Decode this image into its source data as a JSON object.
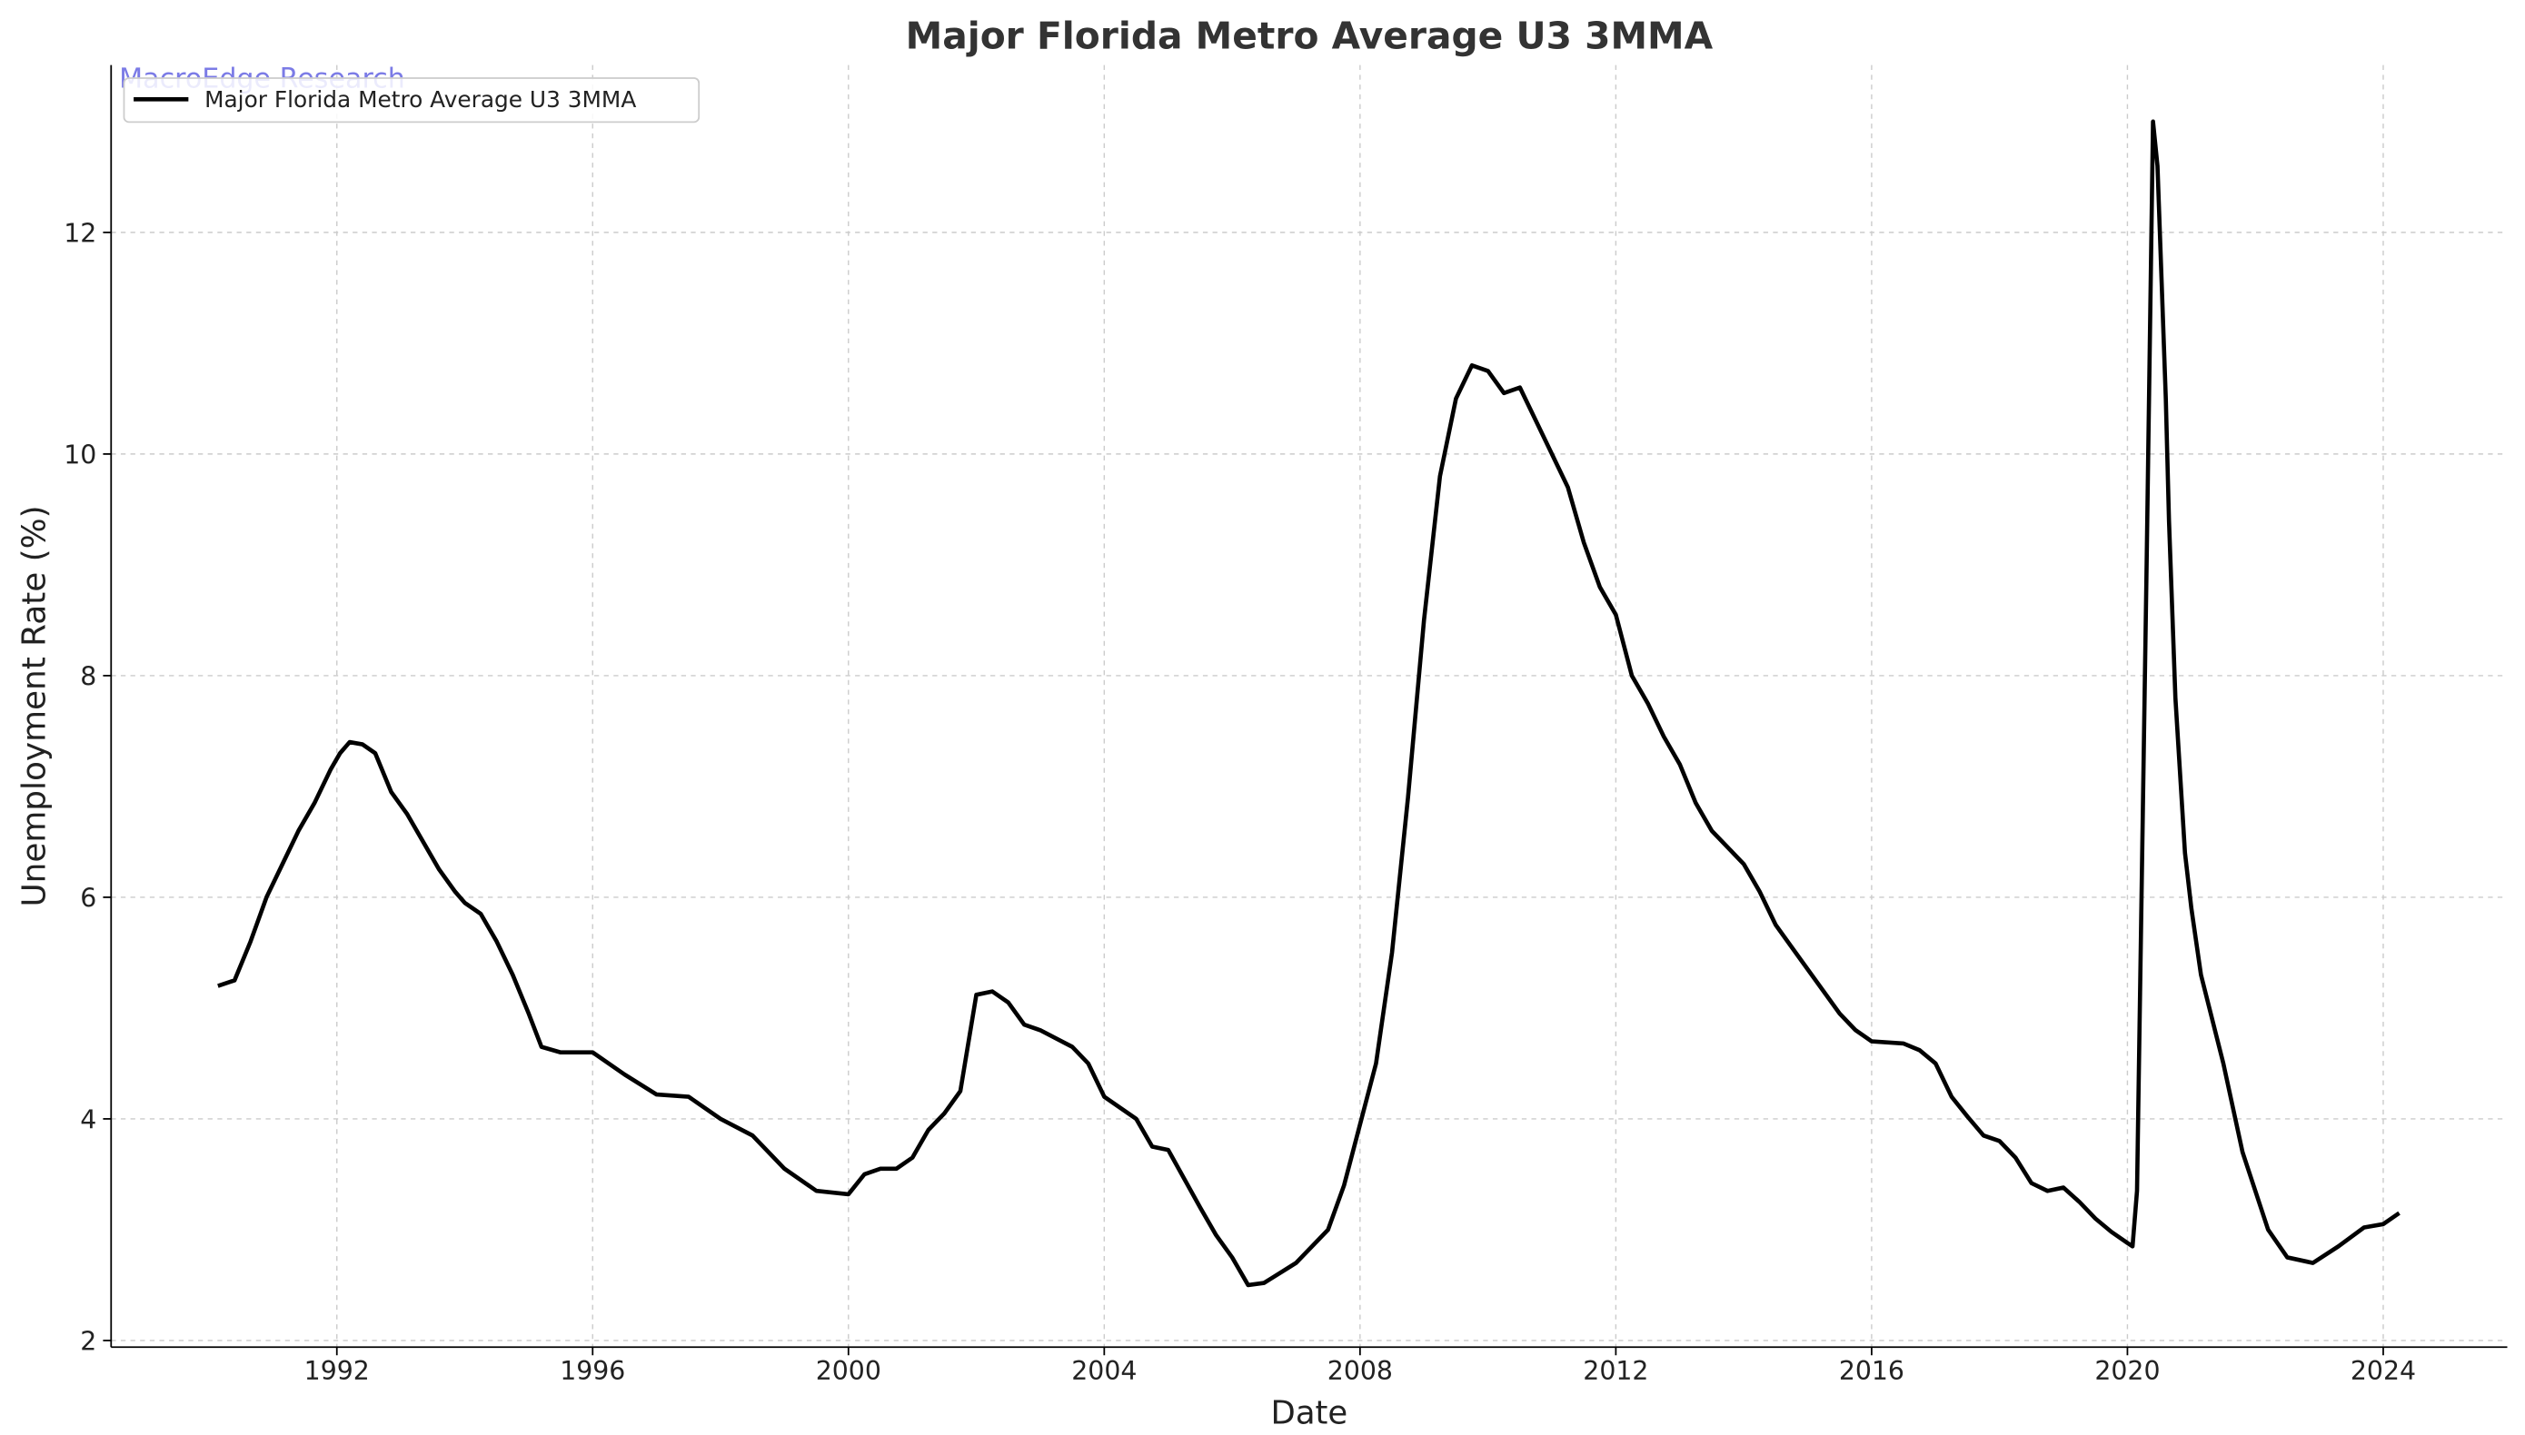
{
  "chart_data": {
    "type": "line",
    "title": "Major Florida Metro Average U3 3MMA",
    "xlabel": "Date",
    "ylabel": "Unemployment Rate (%)",
    "annotation": "MacroEdge Research",
    "legend": "upper left",
    "grid": true,
    "xlim": [
      1988.47,
      2025.94
    ],
    "ylim": [
      1.94,
      13.51
    ],
    "xticks": [
      1992,
      1996,
      2000,
      2004,
      2008,
      2012,
      2016,
      2020,
      2024
    ],
    "yticks": [
      2,
      4,
      6,
      8,
      10,
      12
    ],
    "series": [
      {
        "name": "Major Florida Metro Average U3 3MMA",
        "color": "#000000",
        "x": [
          1990.14,
          1990.4,
          1990.65,
          1990.9,
          1991.15,
          1991.4,
          1991.65,
          1991.9,
          1992.05,
          1992.2,
          1992.4,
          1992.6,
          1992.85,
          1993.1,
          1993.35,
          1993.6,
          1993.85,
          1994.0,
          1994.25,
          1994.5,
          1994.75,
          1995.0,
          1995.2,
          1995.5,
          1996.0,
          1996.5,
          1997.0,
          1997.5,
          1998.0,
          1998.5,
          1999.0,
          1999.5,
          2000.0,
          2000.25,
          2000.5,
          2000.75,
          2001.0,
          2001.25,
          2001.5,
          2001.75,
          2002.0,
          2002.25,
          2002.5,
          2002.75,
          2003.0,
          2003.5,
          2003.75,
          2004.0,
          2004.5,
          2004.75,
          2005.0,
          2005.5,
          2005.75,
          2006.0,
          2006.25,
          2006.5,
          2007.0,
          2007.5,
          2007.75,
          2008.0,
          2008.25,
          2008.5,
          2008.75,
          2009.0,
          2009.25,
          2009.5,
          2009.75,
          2010.0,
          2010.25,
          2010.5,
          2010.75,
          2011.0,
          2011.25,
          2011.5,
          2011.75,
          2012.0,
          2012.25,
          2012.5,
          2012.75,
          2013.0,
          2013.25,
          2013.5,
          2013.75,
          2014.0,
          2014.25,
          2014.5,
          2014.75,
          2015.0,
          2015.5,
          2015.75,
          2016.0,
          2016.5,
          2016.75,
          2017.0,
          2017.25,
          2017.5,
          2017.75,
          2018.0,
          2018.25,
          2018.5,
          2018.75,
          2019.0,
          2019.25,
          2019.5,
          2019.75,
          2020.0,
          2020.08,
          2020.15,
          2020.3,
          2020.4,
          2020.47,
          2020.6,
          2020.65,
          2020.75,
          2020.9,
          2021.0,
          2021.15,
          2021.5,
          2021.8,
          2022.2,
          2022.5,
          2022.9,
          2023.3,
          2023.7,
          2024.0,
          2024.25
        ],
        "values": [
          5.2,
          5.25,
          5.6,
          6.0,
          6.3,
          6.6,
          6.85,
          7.15,
          7.3,
          7.4,
          7.38,
          7.3,
          6.95,
          6.75,
          6.5,
          6.25,
          6.05,
          5.95,
          5.85,
          5.6,
          5.3,
          4.95,
          4.65,
          4.6,
          4.6,
          4.4,
          4.22,
          4.2,
          4.0,
          3.85,
          3.55,
          3.35,
          3.32,
          3.5,
          3.55,
          3.55,
          3.65,
          3.9,
          4.05,
          4.25,
          5.12,
          5.15,
          5.05,
          4.85,
          4.8,
          4.65,
          4.5,
          4.2,
          4.0,
          3.75,
          3.72,
          3.2,
          2.95,
          2.75,
          2.5,
          2.52,
          2.7,
          3.0,
          3.4,
          3.95,
          4.5,
          5.5,
          6.9,
          8.5,
          9.8,
          10.5,
          10.8,
          10.75,
          10.55,
          10.6,
          10.3,
          10.0,
          9.7,
          9.2,
          8.8,
          8.55,
          8.0,
          7.75,
          7.45,
          7.2,
          6.85,
          6.6,
          6.45,
          6.3,
          6.05,
          5.75,
          5.55,
          5.35,
          4.95,
          4.8,
          4.7,
          4.68,
          4.62,
          4.5,
          4.2,
          4.02,
          3.85,
          3.8,
          3.65,
          3.42,
          3.35,
          3.38,
          3.25,
          3.1,
          2.98,
          2.88,
          2.85,
          3.35,
          9.0,
          13.0,
          12.6,
          10.5,
          9.4,
          7.8,
          6.4,
          5.9,
          5.3,
          4.5,
          3.7,
          3.0,
          2.75,
          2.7,
          2.85,
          3.02,
          3.05,
          3.15
        ]
      }
    ]
  }
}
